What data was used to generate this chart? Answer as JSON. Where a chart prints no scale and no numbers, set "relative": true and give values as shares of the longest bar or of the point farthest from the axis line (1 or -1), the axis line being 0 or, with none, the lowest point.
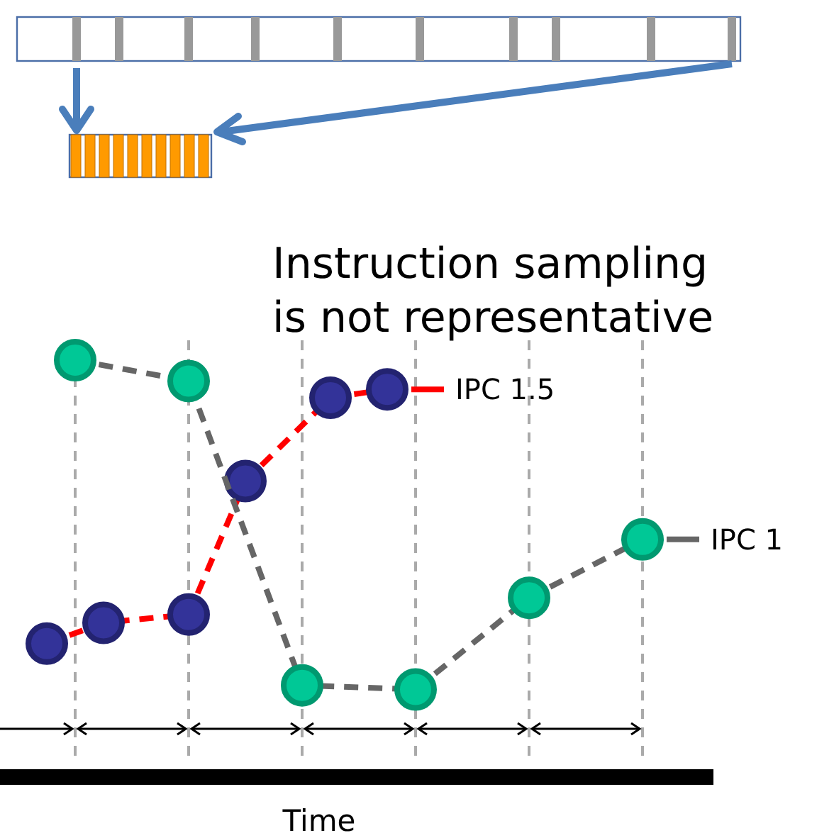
{
  "chart_data": {
    "type": "line",
    "relative": true,
    "xlabel": "Time",
    "annotations": [
      "Instruction sampling is not representative"
    ],
    "categories": [
      null,
      null,
      null,
      null,
      null,
      null,
      null,
      null,
      null,
      null,
      null,
      null,
      null,
      null,
      null,
      null,
      null,
      null,
      null,
      null,
      null,
      null
    ],
    "grid": "x",
    "marker": "circle",
    "line_style": "dashed",
    "legend": "right",
    "series": [
      {
        "name": "IPC 1.5",
        "color": "#ff0000",
        "values": [
          0.32,
          null,
          0.37,
          null,
          null,
          0.39,
          null,
          0.71,
          null,
          null,
          0.91,
          null,
          0.93,
          null,
          null,
          null,
          null,
          null,
          null,
          null,
          null,
          null
        ]
      },
      {
        "name": "IPC 1",
        "color": "#666666",
        "values": [
          null,
          1,
          null,
          null,
          null,
          0.95,
          null,
          null,
          null,
          0.22,
          null,
          null,
          null,
          0.21,
          null,
          null,
          null,
          0.43,
          null,
          null,
          null,
          0.57
        ]
      }
    ]
  }
}
